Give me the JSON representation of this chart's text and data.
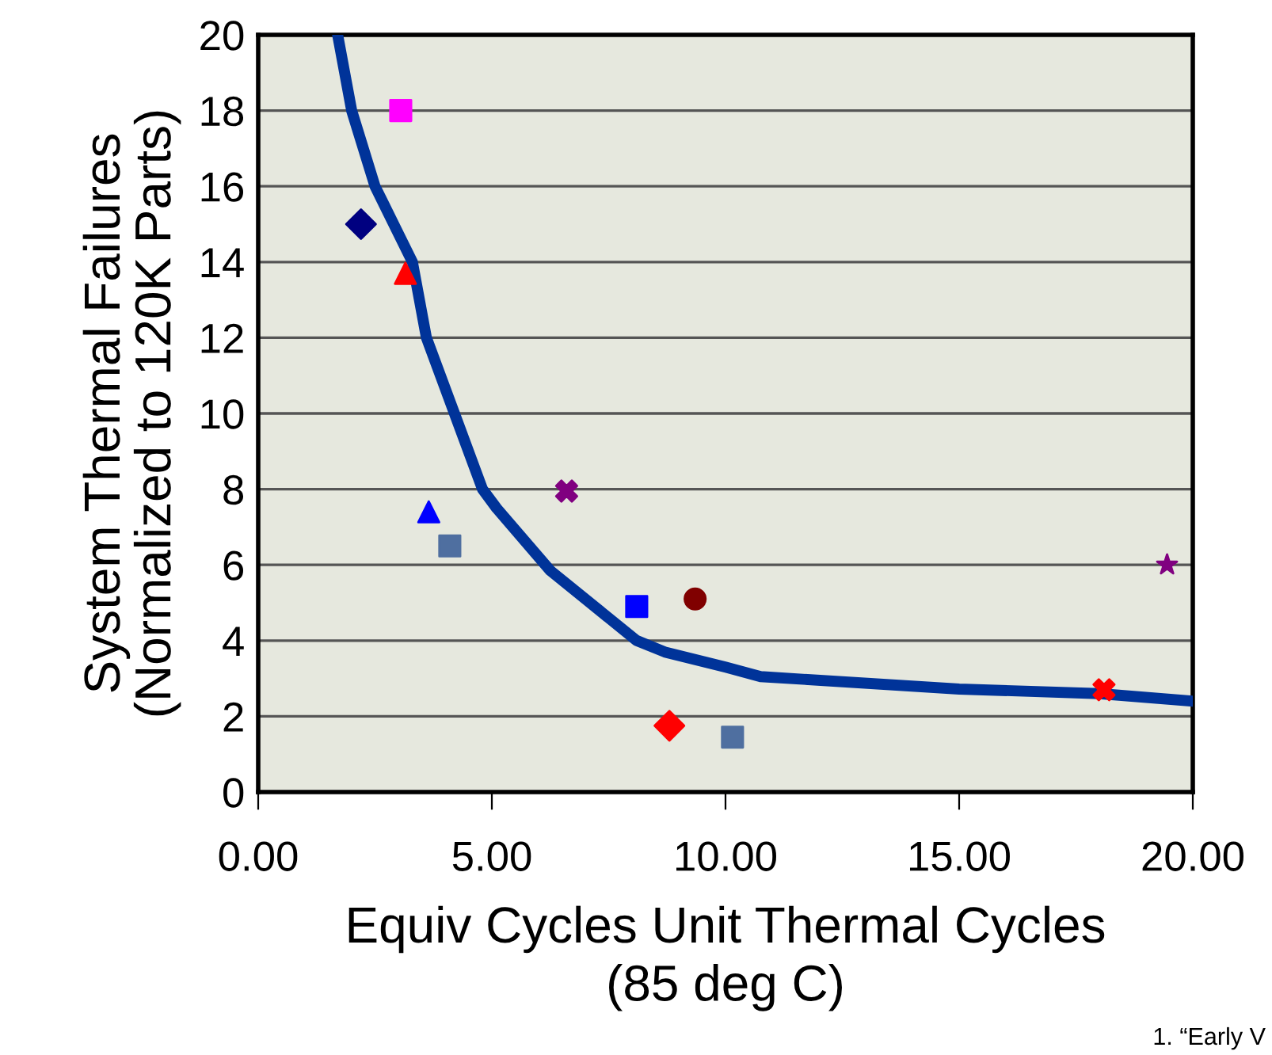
{
  "chart_data": {
    "type": "scatter",
    "xlabel": "Equiv Cycles Unit Thermal Cycles\n(85 deg C)",
    "ylabel": "System Thermal Failures\n(Normalized to 120K Parts)",
    "xlim": [
      0,
      20
    ],
    "ylim": [
      0,
      20
    ],
    "xticks": [
      {
        "value": 0,
        "label": "0.00"
      },
      {
        "value": 5,
        "label": "5.00"
      },
      {
        "value": 10,
        "label": "10.00"
      },
      {
        "value": 15,
        "label": "15.00"
      },
      {
        "value": 20,
        "label": "20.00"
      }
    ],
    "yticks": [
      0,
      2,
      4,
      6,
      8,
      10,
      12,
      14,
      16,
      18,
      20
    ],
    "grid": "y",
    "annotations": [
      "1. “Early V"
    ],
    "series": [
      {
        "type": "line",
        "color": "#003399",
        "marker": "none",
        "line_style": "solid",
        "x": [
          1.7,
          2.0,
          2.5,
          3.3,
          3.6,
          4.2,
          4.8,
          5.1,
          6.25,
          8.1,
          8.7,
          10,
          10.75,
          15,
          18,
          20
        ],
        "values": [
          20,
          18,
          16,
          14,
          12,
          10,
          8,
          7.5,
          5.85,
          4,
          3.7,
          3.3,
          3.05,
          2.72,
          2.6,
          2.4
        ]
      },
      {
        "color": "#ff00ff",
        "marker": "square",
        "x": [
          3.05
        ],
        "values": [
          18.0
        ]
      },
      {
        "color": "#000080",
        "marker": "diamond",
        "x": [
          2.2
        ],
        "values": [
          15.0
        ]
      },
      {
        "color": "#ff0000",
        "marker": "triangle",
        "x": [
          3.15
        ],
        "values": [
          13.7
        ]
      },
      {
        "color": "#0000ff",
        "marker": "triangle",
        "x": [
          3.65
        ],
        "values": [
          7.4
        ]
      },
      {
        "color": "#4f6fa0",
        "marker": "square",
        "x": [
          4.1
        ],
        "values": [
          6.5
        ]
      },
      {
        "color": "#800080",
        "marker": "cross",
        "x": [
          6.6
        ],
        "values": [
          7.95
        ]
      },
      {
        "color": "#0000ff",
        "marker": "square",
        "x": [
          8.1
        ],
        "values": [
          4.9
        ]
      },
      {
        "color": "#800000",
        "marker": "circle",
        "x": [
          9.35
        ],
        "values": [
          5.1
        ]
      },
      {
        "color": "#ff0000",
        "marker": "diamond",
        "x": [
          8.8
        ],
        "values": [
          1.75
        ]
      },
      {
        "color": "#4f6fa0",
        "marker": "square",
        "x": [
          10.15
        ],
        "values": [
          1.45
        ]
      },
      {
        "color": "#ff0000",
        "marker": "cross",
        "x": [
          18.1
        ],
        "values": [
          2.7
        ]
      },
      {
        "color": "#800080",
        "marker": "star",
        "x": [
          19.45
        ],
        "values": [
          6.0
        ]
      }
    ]
  }
}
